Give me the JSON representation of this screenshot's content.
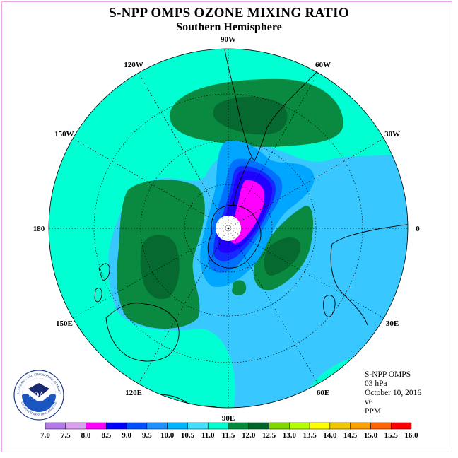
{
  "header": {
    "title": "S-NPP OMPS OZONE MIXING RATIO",
    "subtitle": "Southern Hemisphere"
  },
  "map": {
    "projection": "polar-stereographic-south",
    "longitude_labels": [
      {
        "label": "90W",
        "lon": -90
      },
      {
        "label": "60W",
        "lon": -60
      },
      {
        "label": "120W",
        "lon": -120
      },
      {
        "label": "30W",
        "lon": -30
      },
      {
        "label": "150W",
        "lon": -150
      },
      {
        "label": "0",
        "lon": 0
      },
      {
        "label": "180",
        "lon": 180
      },
      {
        "label": "30E",
        "lon": 30
      },
      {
        "label": "150E",
        "lon": 150
      },
      {
        "label": "60E",
        "lon": 60
      },
      {
        "label": "120E",
        "lon": 120
      },
      {
        "label": "90E",
        "lon": 90
      }
    ],
    "no_data_region": "polar night (no retrieval)"
  },
  "info": {
    "instrument": "S-NPP OMPS",
    "level": "03 hPa",
    "date": "October 10, 2016",
    "version": "v6",
    "units": "PPM"
  },
  "logo": {
    "text": "NOAA",
    "ring_text": "NATIONAL OCEANIC AND ATMOSPHERIC ADMINISTRATION",
    "ring_text_bottom": "U.S. DEPARTMENT OF COMMERCE"
  },
  "colorbar": {
    "labels": [
      "7.0",
      "7.5",
      "8.0",
      "8.5",
      "9.0",
      "9.5",
      "10.0",
      "10.5",
      "11.0",
      "11.5",
      "12.0",
      "12.5",
      "13.0",
      "13.5",
      "14.0",
      "14.5",
      "15.0",
      "15.5",
      "16.0"
    ],
    "colors": [
      "#b27ae8",
      "#dca0f0",
      "#ff00ff",
      "#0000ff",
      "#0050ff",
      "#1e90ff",
      "#00b4ff",
      "#40e0ff",
      "#00ffd0",
      "#008c3c",
      "#006428",
      "#80d800",
      "#b4ff00",
      "#ffff00",
      "#f0c800",
      "#ffa000",
      "#ff6400",
      "#ff0000",
      "#8b4513"
    ]
  },
  "fields": {
    "background_color": "#38c8ff",
    "colors": {
      "level_10_5": "#38c8ff",
      "level_11_0": "#00ffd2",
      "level_11_5": "#0a8a40",
      "level_12_0": "#066a30",
      "level_10_0": "#00a6ff",
      "level_9_5": "#0070ff",
      "level_9_0": "#1428ff",
      "level_8_5": "#2000ff",
      "level_8_0": "#ff00ff",
      "coast": "#000000"
    }
  }
}
